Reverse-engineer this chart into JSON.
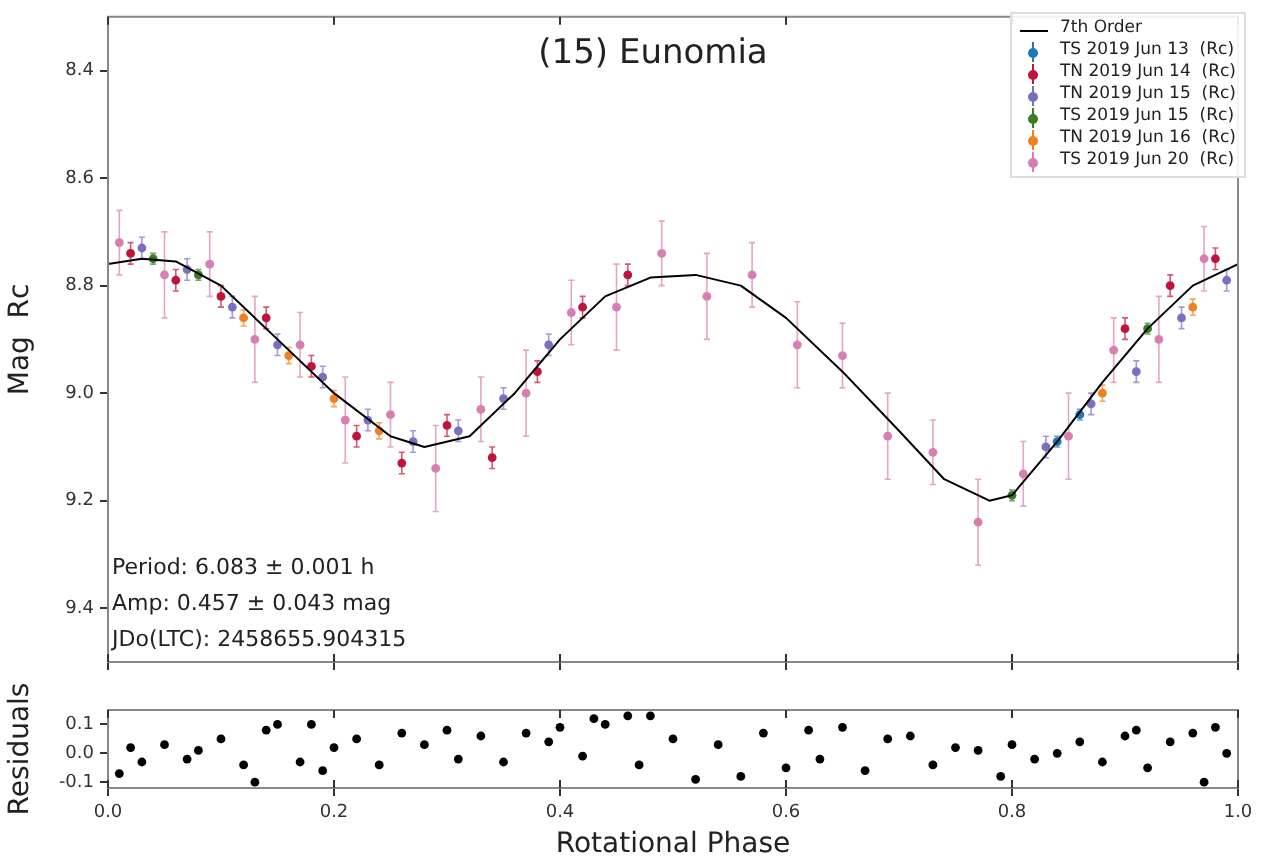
{
  "chart_data": [
    {
      "type": "scatter",
      "title": "(15) Eunomia",
      "ylabel": "Mag  Rc",
      "xlim": [
        0,
        1
      ],
      "ylim": [
        9.5,
        8.3
      ],
      "xticks": [
        0,
        0.2,
        0.4,
        0.6,
        0.8,
        1
      ],
      "yticks": [
        8.4,
        8.6,
        8.8,
        {
          "value": 9,
          "label": "9.0"
        },
        9.2,
        9.4
      ],
      "tick_labels": "y",
      "grid": false,
      "legend": "top right",
      "marker": "circle",
      "annotations": [
        "Period: 6.083 ± 0.001 h",
        "Amp: 0.457 ± 0.043 mag",
        "JDo(LTC): 2458655.904315"
      ],
      "series": [
        {
          "name": "7th Order",
          "type": "line",
          "marker": "none",
          "color": "#000000",
          "x": [
            0,
            0.03,
            0.06,
            0.1,
            0.15,
            0.2,
            0.25,
            0.28,
            0.32,
            0.36,
            0.4,
            0.44,
            0.48,
            0.52,
            0.56,
            0.6,
            0.65,
            0.7,
            0.74,
            0.78,
            0.8,
            0.84,
            0.88,
            0.92,
            0.96,
            1
          ],
          "values": [
            8.76,
            8.75,
            8.755,
            8.8,
            8.9,
            9.0,
            9.08,
            9.1,
            9.08,
            9.0,
            8.9,
            8.82,
            8.785,
            8.78,
            8.8,
            8.86,
            8.96,
            9.07,
            9.16,
            9.2,
            9.19,
            9.09,
            8.98,
            8.88,
            8.8,
            8.76
          ]
        },
        {
          "name": "TS 2019 Jun 13  (Rc)",
          "color": "#1f77b4",
          "x": [
            0.84,
            0.86
          ],
          "values": [
            9.09,
            9.04
          ],
          "errors": [
            0.01,
            0.01
          ]
        },
        {
          "name": "TN 2019 Jun 14  (Rc)",
          "color": "#c0143c",
          "x": [
            0.02,
            0.06,
            0.1,
            0.14,
            0.18,
            0.22,
            0.26,
            0.3,
            0.34,
            0.38,
            0.42,
            0.46,
            0.9,
            0.94,
            0.98
          ],
          "values": [
            8.74,
            8.79,
            8.82,
            8.86,
            8.95,
            9.08,
            9.13,
            9.06,
            9.12,
            8.96,
            8.84,
            8.78,
            8.88,
            8.8,
            8.75
          ],
          "errors": [
            0.02,
            0.02,
            0.02,
            0.02,
            0.02,
            0.02,
            0.02,
            0.02,
            0.02,
            0.02,
            0.02,
            0.02,
            0.02,
            0.02,
            0.02
          ]
        },
        {
          "name": "TN 2019 Jun 15  (Rc)",
          "color": "#7b6fc0",
          "x": [
            0.03,
            0.07,
            0.11,
            0.15,
            0.19,
            0.23,
            0.27,
            0.31,
            0.35,
            0.39,
            0.83,
            0.87,
            0.91,
            0.95,
            0.99
          ],
          "values": [
            8.73,
            8.77,
            8.84,
            8.91,
            8.97,
            9.05,
            9.09,
            9.07,
            9.01,
            8.91,
            9.1,
            9.02,
            8.96,
            8.86,
            8.79
          ],
          "errors": [
            0.02,
            0.02,
            0.02,
            0.02,
            0.02,
            0.02,
            0.02,
            0.02,
            0.02,
            0.02,
            0.02,
            0.02,
            0.02,
            0.02,
            0.02
          ]
        },
        {
          "name": "TS 2019 Jun 15  (Rc)",
          "color": "#3a7d22",
          "x": [
            0.04,
            0.08,
            0.8,
            0.92
          ],
          "values": [
            8.75,
            8.78,
            9.19,
            8.88
          ],
          "errors": [
            0.01,
            0.01,
            0.01,
            0.01
          ]
        },
        {
          "name": "TN 2019 Jun 16  (Rc)",
          "color": "#f08020",
          "x": [
            0.12,
            0.16,
            0.2,
            0.24,
            0.88,
            0.96
          ],
          "values": [
            8.86,
            8.93,
            9.01,
            9.07,
            9.0,
            8.84
          ],
          "errors": [
            0.015,
            0.015,
            0.015,
            0.015,
            0.015,
            0.015
          ]
        },
        {
          "name": "TS 2019 Jun 20  (Rc)",
          "color": "#d77fb0",
          "x": [
            0.01,
            0.05,
            0.09,
            0.13,
            0.17,
            0.21,
            0.25,
            0.29,
            0.33,
            0.37,
            0.41,
            0.45,
            0.49,
            0.53,
            0.57,
            0.61,
            0.65,
            0.69,
            0.73,
            0.77,
            0.81,
            0.85,
            0.89,
            0.93,
            0.97
          ],
          "values": [
            8.72,
            8.78,
            8.76,
            8.9,
            8.91,
            9.05,
            9.04,
            9.14,
            9.03,
            9.0,
            8.85,
            8.84,
            8.74,
            8.82,
            8.78,
            8.91,
            8.93,
            9.08,
            9.11,
            9.24,
            9.15,
            9.08,
            8.92,
            8.9,
            8.75
          ],
          "errors": [
            0.06,
            0.08,
            0.06,
            0.08,
            0.06,
            0.08,
            0.06,
            0.08,
            0.06,
            0.08,
            0.06,
            0.08,
            0.06,
            0.08,
            0.06,
            0.08,
            0.06,
            0.08,
            0.06,
            0.08,
            0.06,
            0.08,
            0.06,
            0.08,
            0.06
          ]
        }
      ]
    },
    {
      "type": "scatter",
      "xlabel": "Rotational Phase",
      "ylabel": "Residuals",
      "xlim": [
        0,
        1
      ],
      "ylim": [
        -0.12,
        0.15
      ],
      "xticks": [
        {
          "value": 0,
          "label": "0.0"
        },
        0.2,
        0.4,
        0.6,
        0.8,
        {
          "value": 1,
          "label": "1.0"
        }
      ],
      "yticks": [
        -0.1,
        {
          "value": 0,
          "label": "0.0"
        },
        0.1
      ],
      "grid": false,
      "marker": "circle",
      "series": [
        {
          "color": "#000000",
          "x": [
            0.01,
            0.02,
            0.03,
            0.05,
            0.07,
            0.08,
            0.1,
            0.12,
            0.13,
            0.14,
            0.15,
            0.17,
            0.18,
            0.19,
            0.2,
            0.22,
            0.24,
            0.26,
            0.28,
            0.3,
            0.31,
            0.33,
            0.35,
            0.37,
            0.39,
            0.4,
            0.42,
            0.43,
            0.44,
            0.46,
            0.47,
            0.48,
            0.5,
            0.52,
            0.54,
            0.56,
            0.58,
            0.6,
            0.62,
            0.63,
            0.65,
            0.67,
            0.69,
            0.71,
            0.73,
            0.75,
            0.77,
            0.79,
            0.8,
            0.82,
            0.84,
            0.86,
            0.88,
            0.9,
            0.91,
            0.92,
            0.94,
            0.96,
            0.97,
            0.98,
            0.99
          ],
          "values": [
            -0.07,
            0.02,
            -0.03,
            0.03,
            -0.02,
            0.01,
            0.05,
            -0.04,
            -0.1,
            0.08,
            0.1,
            -0.03,
            0.1,
            -0.06,
            0.02,
            0.05,
            -0.04,
            0.07,
            0.03,
            0.08,
            -0.02,
            0.06,
            -0.03,
            0.07,
            0.04,
            0.09,
            -0.01,
            0.12,
            0.1,
            0.13,
            -0.04,
            0.13,
            0.05,
            -0.09,
            0.03,
            -0.08,
            0.07,
            -0.05,
            0.08,
            -0.02,
            0.09,
            -0.06,
            0.05,
            0.06,
            -0.04,
            0.02,
            0.01,
            -0.08,
            0.03,
            -0.02,
            0.0,
            0.04,
            -0.03,
            0.06,
            0.08,
            -0.05,
            0.04,
            0.07,
            -0.1,
            0.09,
            0.0
          ]
        }
      ]
    }
  ]
}
